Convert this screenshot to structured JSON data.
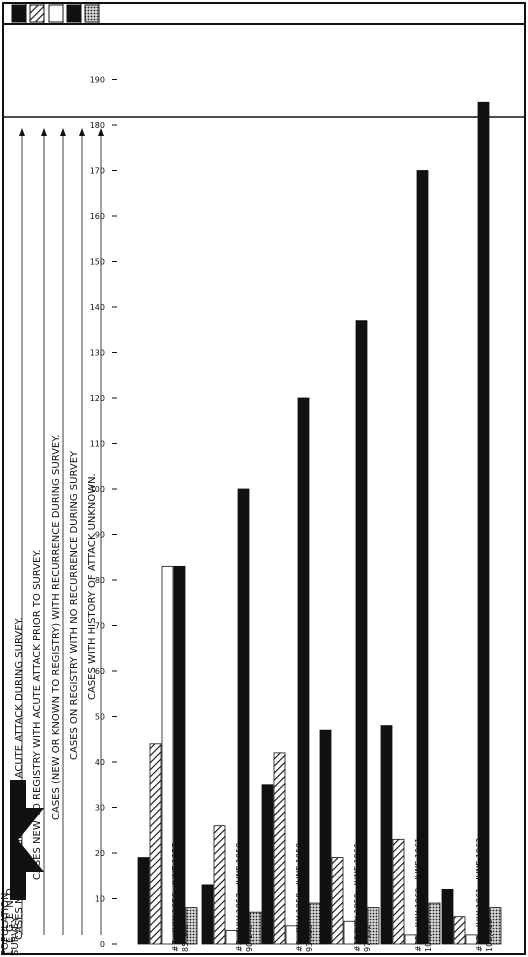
{
  "legend": {
    "letters": [
      "L",
      "E",
      "G",
      "E",
      "N",
      "D"
    ],
    "entries": [
      {
        "label": "CASES NEW TO REGISTRY WITH ACUTE ATTACK DURING SURVEY.",
        "fill": "solid",
        "color": "#111111"
      },
      {
        "label": "CASES NEW TO REGISTRY WITH ACUTE ATTACK PRIOR TO SURVEY.",
        "fill": "hatched",
        "color": "#555555"
      },
      {
        "label": "CASES (NEW OR KNOWN TO REGISTRY) WITH RECURRENCE DURING SURVEY.",
        "fill": "white",
        "color": "#ffffff"
      },
      {
        "label": "CASES ON REGISTRY WITH NO RECURRENCE DURING SURVEY",
        "fill": "solid",
        "color": "#111111"
      },
      {
        "label": "CASES WITH HISTORY OF ATTACK UNKNOWN.",
        "fill": "dotted",
        "color": "#888888"
      }
    ]
  },
  "axis": {
    "ticks": [
      "0",
      "10",
      "20",
      "30",
      "40",
      "50",
      "60",
      "70",
      "80",
      "90",
      "100",
      "110",
      "120",
      "130",
      "140",
      "150",
      "160",
      "170",
      "180",
      "190"
    ],
    "survey_label": "SURVEY",
    "population_label": "POPULATION"
  },
  "chart_data": {
    "type": "bar",
    "orientation": "horizontal",
    "categories": [
      "#7 - JULY 1956 - JUNE 1957",
      "#8 - JULY 1957 - JUNE 1958",
      "#9 - JULY 1958 - JUNE 1959",
      "#10 JULY 1959 - JUNE 1960",
      "#11 - JULY 1960 - JUNE 1961",
      "#12 - JULY 1961 - JUNE 1962"
    ],
    "populations": [
      "85,508",
      "90,145",
      "93,083",
      "97,132",
      "100,827",
      "102,819"
    ],
    "series": [
      {
        "name": "CASES NEW TO REGISTRY WITH ACUTE ATTACK DURING SURVEY.",
        "values": [
          19,
          13,
          35,
          47,
          48,
          12
        ]
      },
      {
        "name": "CASES NEW TO REGISTRY WITH ACUTE ATTACK PRIOR TO SURVEY.",
        "values": [
          44,
          26,
          42,
          19,
          23,
          6
        ]
      },
      {
        "name": "CASES (NEW OR KNOWN TO REGISTRY) WITH RECURRENCE DURING SURVEY.",
        "values": [
          83,
          3,
          4,
          5,
          2,
          2
        ]
      },
      {
        "name": "CASES ON REGISTRY WITH NO RECURRENCE DURING SURVEY",
        "values": [
          83,
          100,
          120,
          137,
          170,
          185
        ]
      },
      {
        "name": "CASES WITH HISTORY OF ATTACK UNKNOWN.",
        "values": [
          8,
          7,
          9,
          8,
          9,
          8
        ]
      }
    ],
    "xlim": [
      0,
      195
    ],
    "grid": false,
    "legend_position": "top"
  }
}
